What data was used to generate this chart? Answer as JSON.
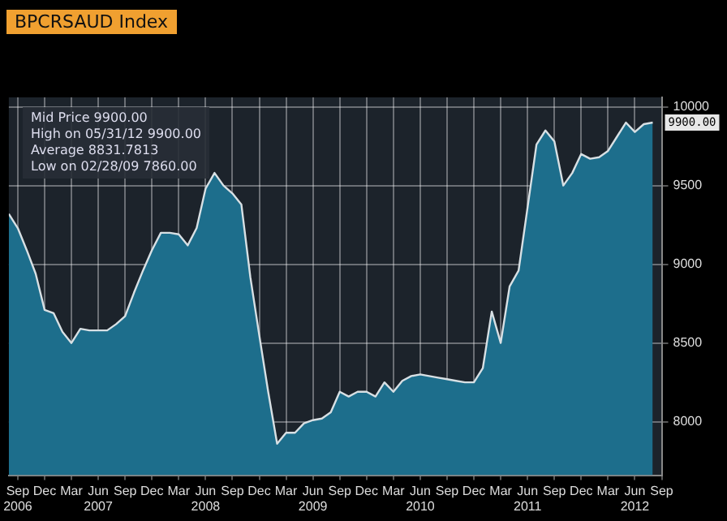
{
  "chart_data": {
    "type": "area",
    "title": "BPCRSAUD Index",
    "x": [
      "2006-08",
      "2006-09",
      "2006-10",
      "2006-11",
      "2006-12",
      "2007-01",
      "2007-02",
      "2007-03",
      "2007-04",
      "2007-05",
      "2007-06",
      "2007-07",
      "2007-08",
      "2007-09",
      "2007-10",
      "2007-11",
      "2007-12",
      "2008-01",
      "2008-02",
      "2008-03",
      "2008-04",
      "2008-05",
      "2008-06",
      "2008-07",
      "2008-08",
      "2008-09",
      "2008-10",
      "2008-11",
      "2008-12",
      "2009-01",
      "2009-02",
      "2009-03",
      "2009-04",
      "2009-05",
      "2009-06",
      "2009-07",
      "2009-08",
      "2009-09",
      "2009-10",
      "2009-11",
      "2009-12",
      "2010-01",
      "2010-02",
      "2010-03",
      "2010-04",
      "2010-05",
      "2010-06",
      "2010-07",
      "2010-08",
      "2010-09",
      "2010-10",
      "2010-11",
      "2010-12",
      "2011-01",
      "2011-02",
      "2011-03",
      "2011-04",
      "2011-05",
      "2011-06",
      "2011-07",
      "2011-08",
      "2011-09",
      "2011-10",
      "2011-11",
      "2011-12",
      "2012-01",
      "2012-02",
      "2012-03",
      "2012-04",
      "2012-05",
      "2012-06",
      "2012-07",
      "2012-08"
    ],
    "series": [
      {
        "color": "#1d6e8c",
        "values": [
          9320,
          9230,
          9090,
          8940,
          8710,
          8690,
          8570,
          8500,
          8590,
          8580,
          8580,
          8580,
          8620,
          8670,
          8820,
          8960,
          9090,
          9200,
          9200,
          9190,
          9120,
          9230,
          9480,
          9580,
          9500,
          9450,
          9380,
          8920,
          8550,
          8190,
          7860,
          7930,
          7930,
          7990,
          8010,
          8020,
          8060,
          8190,
          8160,
          8190,
          8190,
          8160,
          8250,
          8190,
          8260,
          8290,
          8300,
          8290,
          8280,
          8270,
          8260,
          8250,
          8250,
          8340,
          8700,
          8500,
          8860,
          8960,
          9360,
          9760,
          9850,
          9780,
          9500,
          9580,
          9700,
          9670,
          9680,
          9720,
          9810,
          9900,
          9840,
          9890,
          9900
        ]
      }
    ],
    "xlim": [
      "2006-08",
      "2012-09"
    ],
    "xticks": [
      {
        "value": "2006-09",
        "label": "Sep\n2006"
      },
      {
        "value": "2006-12",
        "label": "Dec"
      },
      {
        "value": "2007-03",
        "label": "Mar"
      },
      {
        "value": "2007-06",
        "label": "Jun\n2007"
      },
      {
        "value": "2007-09",
        "label": "Sep"
      },
      {
        "value": "2007-12",
        "label": "Dec"
      },
      {
        "value": "2008-03",
        "label": "Mar"
      },
      {
        "value": "2008-06",
        "label": "Jun\n2008"
      },
      {
        "value": "2008-09",
        "label": "Sep"
      },
      {
        "value": "2008-12",
        "label": "Dec"
      },
      {
        "value": "2009-03",
        "label": "Mar"
      },
      {
        "value": "2009-06",
        "label": "Jun\n2009"
      },
      {
        "value": "2009-09",
        "label": "Sep"
      },
      {
        "value": "2009-12",
        "label": "Dec"
      },
      {
        "value": "2010-03",
        "label": "Mar"
      },
      {
        "value": "2010-06",
        "label": "Jun\n2010"
      },
      {
        "value": "2010-09",
        "label": "Sep"
      },
      {
        "value": "2010-12",
        "label": "Dec"
      },
      {
        "value": "2011-03",
        "label": "Mar"
      },
      {
        "value": "2011-06",
        "label": "Jun\n2011"
      },
      {
        "value": "2011-09",
        "label": "Sep"
      },
      {
        "value": "2011-12",
        "label": "Dec"
      },
      {
        "value": "2012-03",
        "label": "Mar"
      },
      {
        "value": "2012-06",
        "label": "Jun\n2012"
      },
      {
        "value": "2012-09",
        "label": "Sep"
      }
    ],
    "ylim": [
      7660,
      10060
    ],
    "yticks": [
      8000,
      8500,
      9000,
      9500,
      10000
    ],
    "grid": true,
    "legend": false,
    "marker": "none",
    "annotations": [
      "Mid Price 9900.00",
      "High on 05/31/12 9900.00",
      "Average 8831.7813",
      "Low on 02/28/09 7860.00",
      {
        "text": "9900.00",
        "x": "2012-08",
        "y": 9900
      }
    ]
  }
}
